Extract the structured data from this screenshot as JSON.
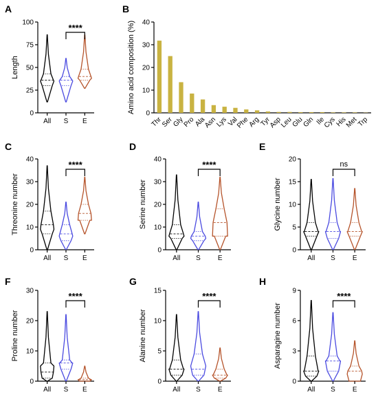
{
  "colors": {
    "all": "#000000",
    "s": "#4a4ae0",
    "e": "#b5532a",
    "bar": "#c9b342"
  },
  "chart_data": [
    {
      "panel": "A",
      "type": "violin",
      "ylabel": "Length",
      "ylim": [
        0,
        100
      ],
      "yticks": [
        0,
        25,
        50,
        75,
        100
      ],
      "categories": [
        "All",
        "S",
        "E"
      ],
      "groups": [
        {
          "name": "All",
          "min": 12,
          "max": 86,
          "q1": 30,
          "median": 36,
          "q3": 43,
          "mode": 35
        },
        {
          "name": "S",
          "min": 12,
          "max": 60,
          "q1": 30,
          "median": 36,
          "q3": 40,
          "mode": 35
        },
        {
          "name": "E",
          "min": 27,
          "max": 86,
          "q1": 36,
          "median": 40,
          "q3": 48,
          "mode": 38
        }
      ],
      "significance": {
        "between": [
          "S",
          "E"
        ],
        "label": "****"
      }
    },
    {
      "panel": "B",
      "type": "bar",
      "ylabel": "Amino acid composition (%)",
      "ylim": [
        0,
        40
      ],
      "yticks": [
        0,
        10,
        20,
        30,
        40
      ],
      "categories": [
        "Thr",
        "Ser",
        "Gly",
        "Pro",
        "Ala",
        "Asn",
        "Lys",
        "Val",
        "Phe",
        "Arg",
        "Tyr",
        "Asp",
        "Leu",
        "Glu",
        "Gln",
        "Ile",
        "Cys",
        "His",
        "Met",
        "Trp"
      ],
      "values": [
        31.8,
        25.0,
        13.5,
        8.5,
        5.9,
        3.4,
        2.7,
        2.2,
        1.5,
        1.1,
        0.6,
        0.4,
        0.4,
        0.3,
        0.3,
        0.3,
        0.2,
        0.2,
        0.2,
        0.1
      ]
    },
    {
      "panel": "C",
      "type": "violin",
      "ylabel": "Threonine number",
      "ylim": [
        0,
        40
      ],
      "yticks": [
        0,
        10,
        20,
        30,
        40
      ],
      "categories": [
        "All",
        "S",
        "E"
      ],
      "groups": [
        {
          "name": "All",
          "min": 0,
          "max": 37,
          "q1": 7,
          "median": 11,
          "q3": 17,
          "mode": 9
        },
        {
          "name": "S",
          "min": 0,
          "max": 21,
          "q1": 4,
          "median": 7,
          "q3": 11,
          "mode": 6
        },
        {
          "name": "E",
          "min": 7,
          "max": 32,
          "q1": 13,
          "median": 16,
          "q3": 20,
          "mode": 13
        }
      ],
      "significance": {
        "between": [
          "S",
          "E"
        ],
        "label": "****"
      }
    },
    {
      "panel": "D",
      "type": "violin",
      "ylabel": "Serine number",
      "ylim": [
        0,
        40
      ],
      "yticks": [
        0,
        10,
        20,
        30,
        40
      ],
      "categories": [
        "All",
        "S",
        "E"
      ],
      "groups": [
        {
          "name": "All",
          "min": 0,
          "max": 33,
          "q1": 5,
          "median": 7,
          "q3": 11,
          "mode": 6
        },
        {
          "name": "S",
          "min": 0,
          "max": 21,
          "q1": 4,
          "median": 6,
          "q3": 8,
          "mode": 5
        },
        {
          "name": "E",
          "min": 0,
          "max": 32,
          "q1": 6,
          "median": 12,
          "q3": 18,
          "mode": 6
        }
      ],
      "significance": {
        "between": [
          "S",
          "E"
        ],
        "label": "****"
      }
    },
    {
      "panel": "E",
      "type": "violin",
      "ylabel": "Glycine number",
      "ylim": [
        0,
        20
      ],
      "yticks": [
        0,
        5,
        10,
        15,
        20
      ],
      "categories": [
        "All",
        "S",
        "E"
      ],
      "groups": [
        {
          "name": "All",
          "min": 0,
          "max": 15.5,
          "q1": 3,
          "median": 4,
          "q3": 6,
          "mode": 4
        },
        {
          "name": "S",
          "min": 0,
          "max": 15.7,
          "q1": 2.5,
          "median": 4,
          "q3": 6,
          "mode": 4
        },
        {
          "name": "E",
          "min": 0,
          "max": 13.5,
          "q1": 3,
          "median": 4,
          "q3": 6,
          "mode": 4
        }
      ],
      "significance": {
        "between": [
          "S",
          "E"
        ],
        "label": "ns"
      }
    },
    {
      "panel": "F",
      "type": "violin",
      "ylabel": "Proline number",
      "ylim": [
        0,
        30
      ],
      "yticks": [
        0,
        10,
        20,
        30
      ],
      "categories": [
        "All",
        "S",
        "E"
      ],
      "groups": [
        {
          "name": "All",
          "min": 0,
          "max": 23,
          "q1": 1,
          "median": 3,
          "q3": 6,
          "mode": 5
        },
        {
          "name": "S",
          "min": 0,
          "max": 22,
          "q1": 4,
          "median": 6,
          "q3": 7,
          "mode": 6
        },
        {
          "name": "E",
          "min": 0,
          "max": 5,
          "q1": 0,
          "median": 0.5,
          "q3": 1,
          "mode": 0.5
        }
      ],
      "significance": {
        "between": [
          "S",
          "E"
        ],
        "label": "****"
      }
    },
    {
      "panel": "G",
      "type": "violin",
      "ylabel": "Alanine number",
      "ylim": [
        0,
        15
      ],
      "yticks": [
        0,
        5,
        10,
        15
      ],
      "categories": [
        "All",
        "S",
        "E"
      ],
      "groups": [
        {
          "name": "All",
          "min": 0,
          "max": 11,
          "q1": 1,
          "median": 2,
          "q3": 3.5,
          "mode": 2
        },
        {
          "name": "S",
          "min": 0,
          "max": 11.5,
          "q1": 1,
          "median": 2,
          "q3": 4.5,
          "mode": 2.5
        },
        {
          "name": "E",
          "min": 0,
          "max": 5.5,
          "q1": 0.5,
          "median": 1,
          "q3": 2,
          "mode": 1
        }
      ],
      "significance": {
        "between": [
          "S",
          "E"
        ],
        "label": "****"
      }
    },
    {
      "panel": "H",
      "type": "violin",
      "ylabel": "Asparagine number",
      "ylim": [
        0,
        9
      ],
      "yticks": [
        0,
        3,
        6,
        9
      ],
      "categories": [
        "All",
        "S",
        "E"
      ],
      "groups": [
        {
          "name": "All",
          "min": 0,
          "max": 8,
          "q1": 0.5,
          "median": 1,
          "q3": 2.5,
          "mode": 1
        },
        {
          "name": "S",
          "min": 0,
          "max": 6.8,
          "q1": 1,
          "median": 2,
          "q3": 2.5,
          "mode": 2
        },
        {
          "name": "E",
          "min": 0,
          "max": 4,
          "q1": 0,
          "median": 1,
          "q3": 1.5,
          "mode": 0.7
        }
      ],
      "significance": {
        "between": [
          "S",
          "E"
        ],
        "label": "****"
      }
    }
  ]
}
